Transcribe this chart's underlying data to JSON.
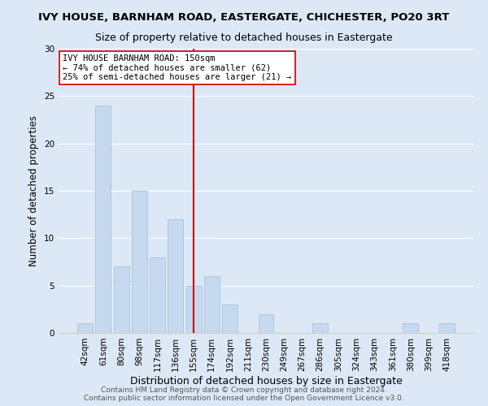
{
  "title": "IVY HOUSE, BARNHAM ROAD, EASTERGATE, CHICHESTER, PO20 3RT",
  "subtitle": "Size of property relative to detached houses in Eastergate",
  "xlabel": "Distribution of detached houses by size in Eastergate",
  "ylabel": "Number of detached properties",
  "categories": [
    "42sqm",
    "61sqm",
    "80sqm",
    "98sqm",
    "117sqm",
    "136sqm",
    "155sqm",
    "174sqm",
    "192sqm",
    "211sqm",
    "230sqm",
    "249sqm",
    "267sqm",
    "286sqm",
    "305sqm",
    "324sqm",
    "343sqm",
    "361sqm",
    "380sqm",
    "399sqm",
    "418sqm"
  ],
  "values": [
    1,
    24,
    7,
    15,
    8,
    12,
    5,
    6,
    3,
    0,
    2,
    0,
    0,
    1,
    0,
    0,
    0,
    0,
    1,
    0,
    1
  ],
  "bar_color": "#c6d9ee",
  "bar_edge_color": "#a8c4df",
  "bar_linewidth": 0.6,
  "reference_line_color": "#cc0000",
  "annotation_text": "IVY HOUSE BARNHAM ROAD: 150sqm\n← 74% of detached houses are smaller (62)\n25% of semi-detached houses are larger (21) →",
  "annotation_box_color": "#ffffff",
  "annotation_box_edge_color": "#cc0000",
  "annotation_fontsize": 7.5,
  "ylim": [
    0,
    30
  ],
  "yticks": [
    0,
    5,
    10,
    15,
    20,
    25,
    30
  ],
  "title_fontsize": 9.5,
  "subtitle_fontsize": 9,
  "xlabel_fontsize": 9,
  "ylabel_fontsize": 8.5,
  "tick_fontsize": 7.5,
  "footer_text": "Contains HM Land Registry data © Crown copyright and database right 2024.\nContains public sector information licensed under the Open Government Licence v3.0.",
  "footer_fontsize": 6.5,
  "background_color": "#dce8f5",
  "plot_background_color": "#dce8f5",
  "grid_color": "#ffffff",
  "spine_color": "#cccccc"
}
